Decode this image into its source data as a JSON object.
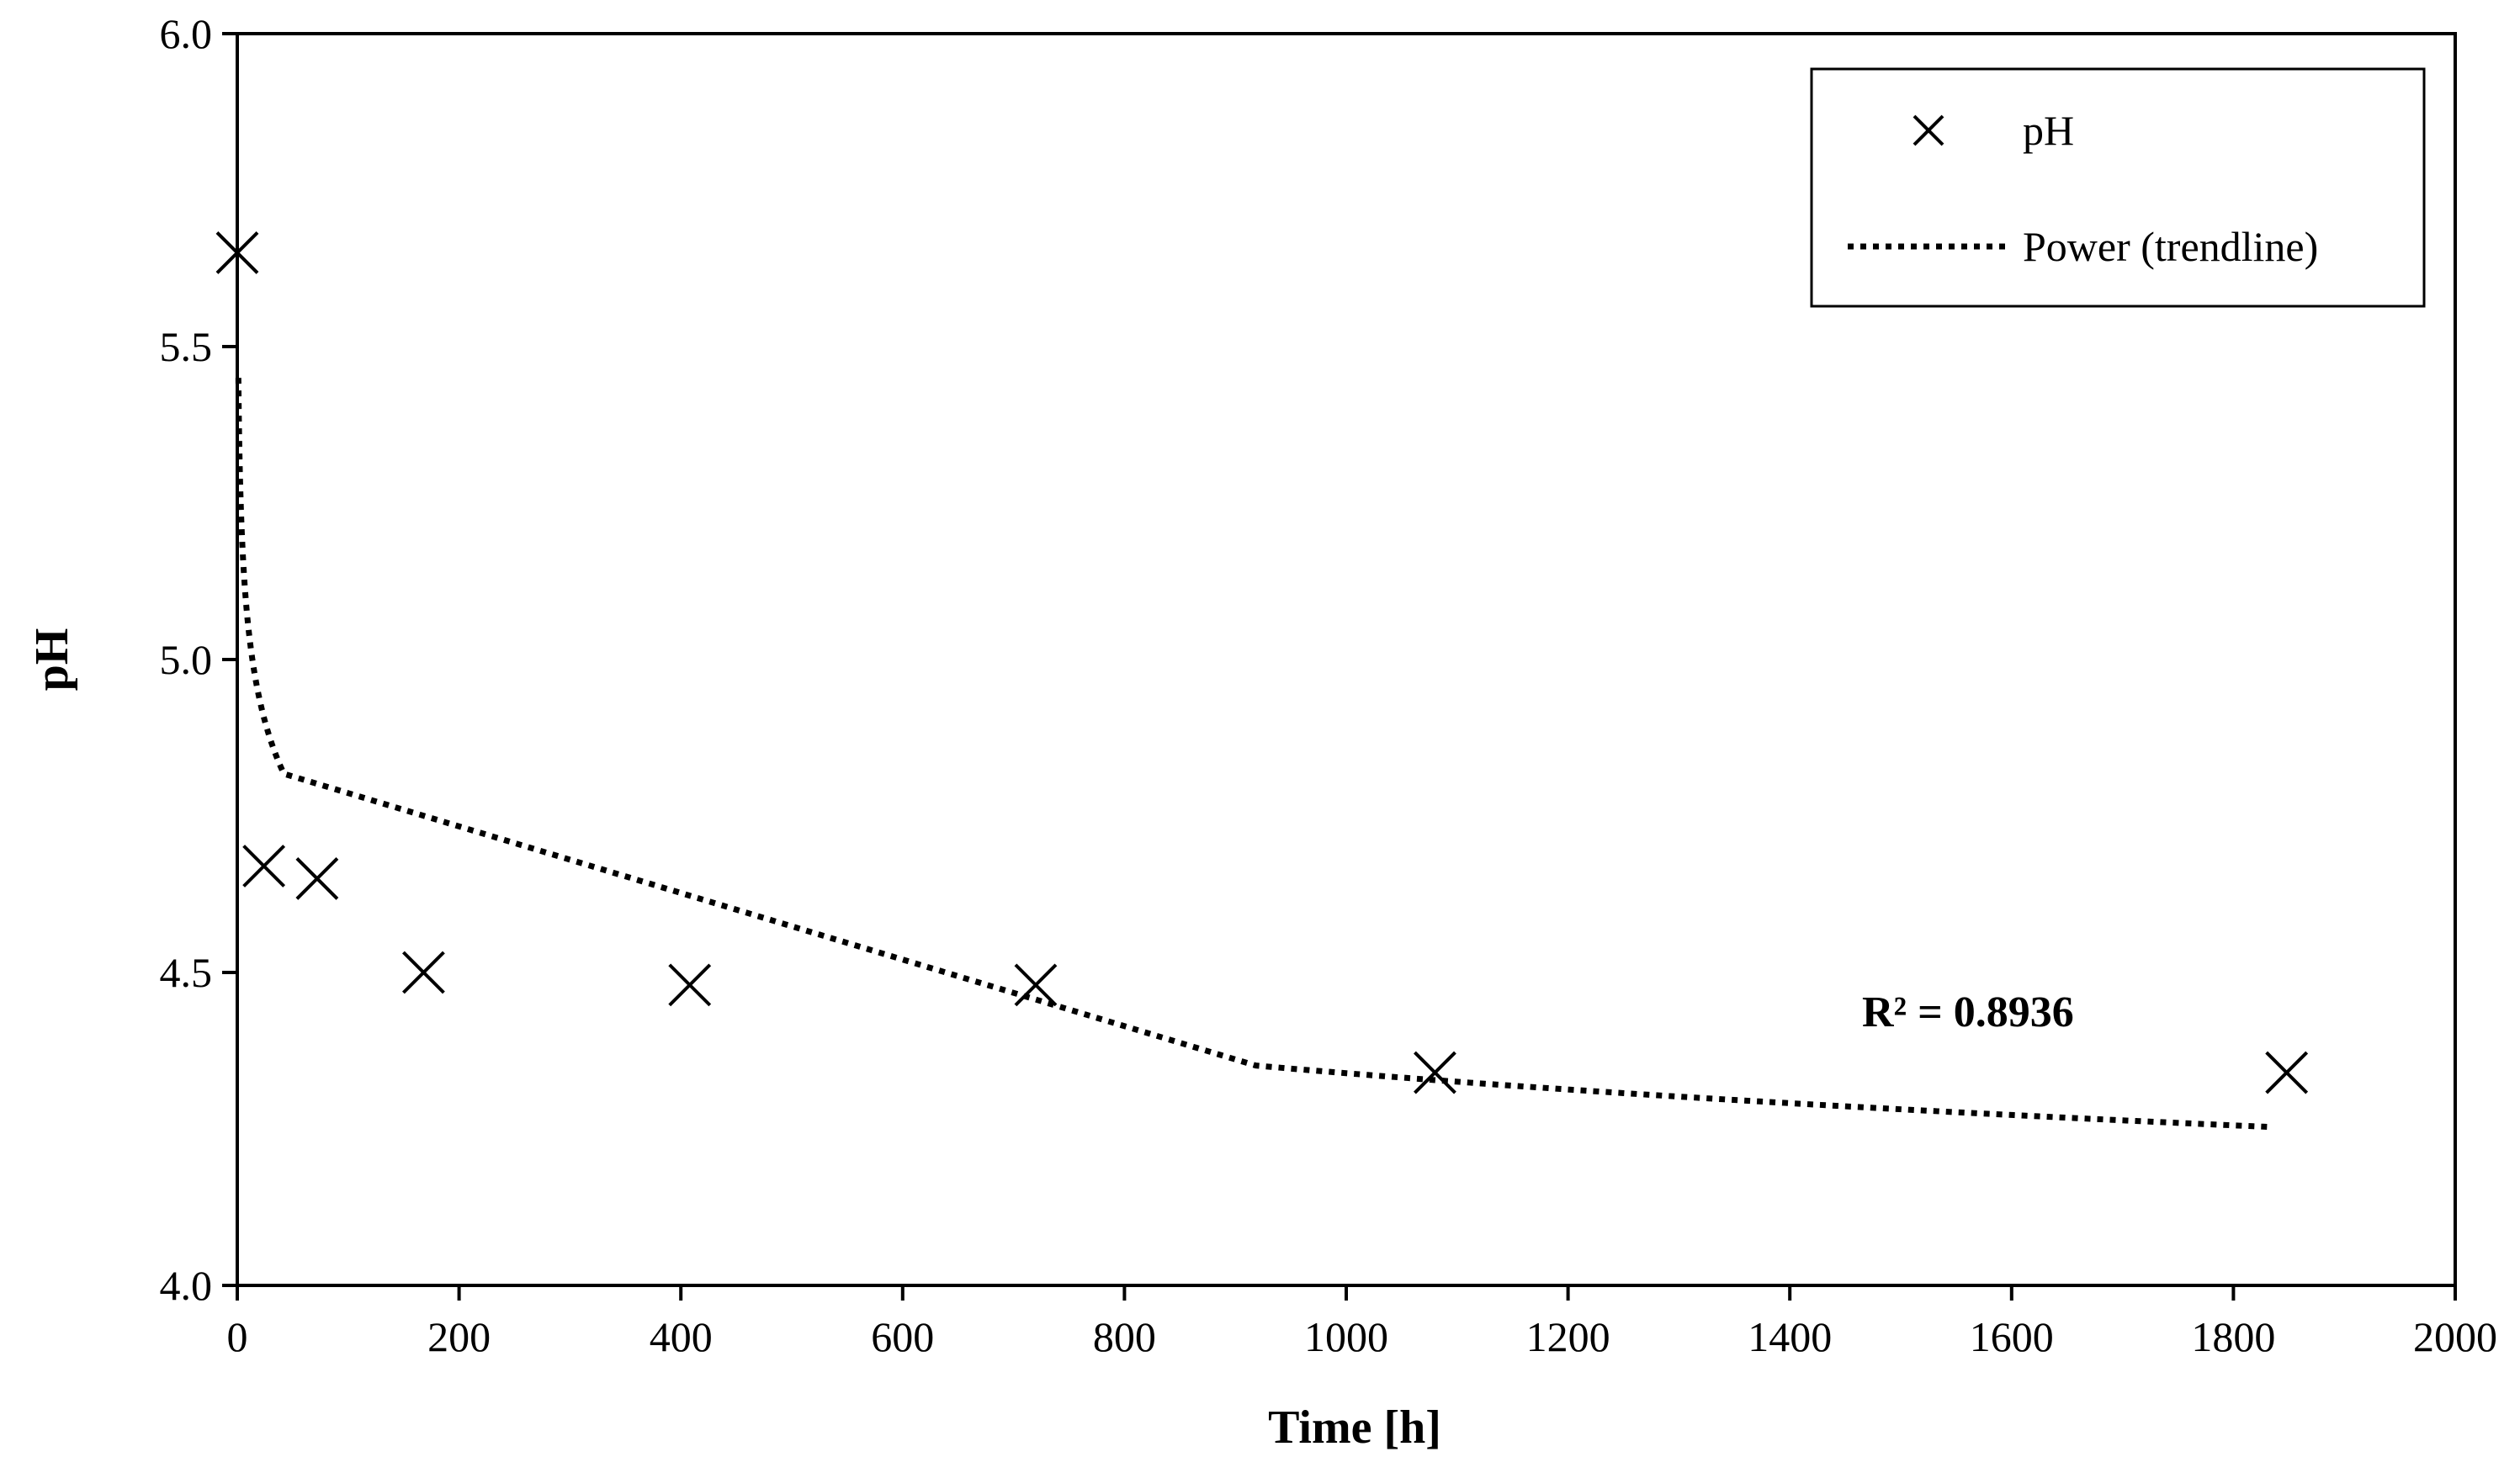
{
  "chart_data": {
    "type": "scatter",
    "title": "",
    "xlabel": "Time [h]",
    "ylabel": "pH",
    "xlim": [
      0,
      2000
    ],
    "ylim": [
      4.0,
      6.0
    ],
    "x_ticks": [
      0,
      200,
      400,
      600,
      800,
      1000,
      1200,
      1400,
      1600,
      1800,
      2000
    ],
    "y_ticks": [
      4.0,
      4.5,
      5.0,
      5.5,
      6.0
    ],
    "x_tick_labels": [
      "0",
      "200",
      "400",
      "600",
      "800",
      "1000",
      "1200",
      "1400",
      "1600",
      "1800",
      "2000"
    ],
    "y_tick_labels": [
      "4.0",
      "4.5",
      "5.0",
      "5.5",
      "6.0"
    ],
    "series": [
      {
        "name": "pH",
        "marker": "x",
        "x": [
          0,
          24,
          72,
          168,
          408,
          720,
          1080,
          1848
        ],
        "y": [
          5.65,
          4.67,
          4.65,
          4.5,
          4.48,
          4.48,
          4.34,
          4.34
        ]
      }
    ],
    "trendline": {
      "name": "Power (trendline)",
      "style": "dotted",
      "x_start": 1,
      "x_end": 1836,
      "a": 5.45,
      "b": -0.033
    },
    "r_squared_label": "R² = 0.8936",
    "legend": {
      "position": "top-right",
      "entries": [
        "pH",
        "Power (trendline)"
      ]
    },
    "grid": false
  }
}
